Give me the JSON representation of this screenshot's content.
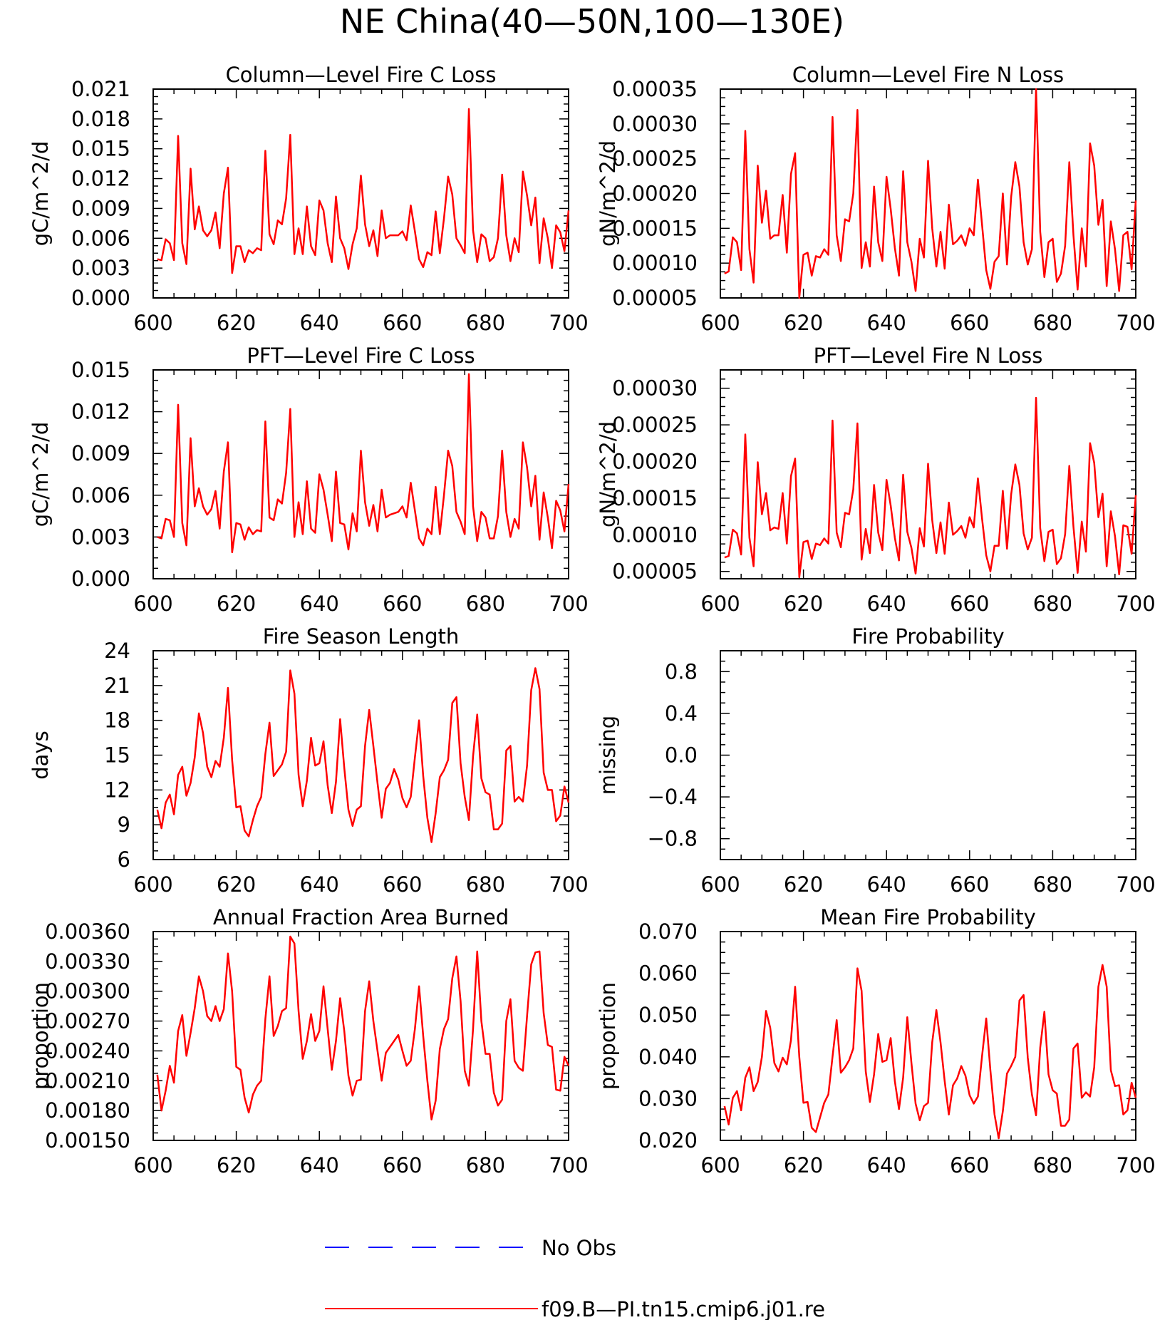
{
  "title": "NE China(40—50N,100—130E)",
  "legend": [
    {
      "label": "No Obs",
      "color": "#0000ff",
      "dash": true
    },
    {
      "label": "f09.B—PI.tn15.cmip6.j01.re",
      "color": "#ff0000",
      "dash": false
    }
  ],
  "chart_data": [
    {
      "type": "line",
      "title": "Column—Level Fire C Loss",
      "ylabel": "gC/m^2/d",
      "xlim": [
        600,
        700
      ],
      "xticks": [
        "600",
        "620",
        "640",
        "660",
        "680",
        "700"
      ],
      "ylim": [
        0,
        0.021
      ],
      "yticks": [
        "0.000",
        "0.003",
        "0.006",
        "0.009",
        "0.012",
        "0.015",
        "0.018",
        "0.021"
      ],
      "x_start": 601,
      "series": [
        {
          "name": "f09.B—PI.tn15.cmip6.j01.re",
          "color": "#ff0000",
          "values": [
            0.0039,
            0.0038,
            0.0059,
            0.0055,
            0.0038,
            0.0163,
            0.0055,
            0.0034,
            0.013,
            0.0069,
            0.0092,
            0.0068,
            0.0062,
            0.0068,
            0.0086,
            0.005,
            0.0105,
            0.0131,
            0.0025,
            0.0052,
            0.0052,
            0.0036,
            0.0048,
            0.0045,
            0.005,
            0.0048,
            0.0148,
            0.0064,
            0.0054,
            0.0078,
            0.0074,
            0.01,
            0.0164,
            0.0044,
            0.007,
            0.0044,
            0.0092,
            0.0052,
            0.0043,
            0.0098,
            0.0088,
            0.0055,
            0.0036,
            0.0102,
            0.006,
            0.005,
            0.0029,
            0.0054,
            0.007,
            0.0123,
            0.0074,
            0.0052,
            0.0068,
            0.0042,
            0.0088,
            0.006,
            0.0063,
            0.0063,
            0.0063,
            0.0067,
            0.0058,
            0.0093,
            0.0067,
            0.0039,
            0.0031,
            0.0046,
            0.0043,
            0.0087,
            0.0045,
            0.008,
            0.0122,
            0.0104,
            0.006,
            0.0053,
            0.0045,
            0.019,
            0.0068,
            0.0036,
            0.0064,
            0.006,
            0.0037,
            0.0041,
            0.006,
            0.0124,
            0.0063,
            0.0037,
            0.006,
            0.0046,
            0.0127,
            0.0103,
            0.0073,
            0.0101,
            0.0035,
            0.008,
            0.006,
            0.003,
            0.0073,
            0.0066,
            0.0047,
            0.0088
          ]
        }
      ]
    },
    {
      "type": "line",
      "title": "Column—Level Fire N Loss",
      "ylabel": "gN/m^2/d",
      "xlim": [
        600,
        700
      ],
      "xticks": [
        "600",
        "620",
        "640",
        "660",
        "680",
        "700"
      ],
      "ylim": [
        5e-05,
        0.00035
      ],
      "yticks": [
        "0.00005",
        "0.00010",
        "0.00015",
        "0.00020",
        "0.00025",
        "0.00030",
        "0.00035"
      ],
      "x_start": 601,
      "series": [
        {
          "name": "f09.B—PI.tn15.cmip6.j01.re",
          "color": "#ff0000",
          "values": [
            8.5e-05,
            8.8e-05,
            0.000137,
            0.00013,
            9e-05,
            0.00029,
            0.00012,
            7.2e-05,
            0.00024,
            0.000158,
            0.000204,
            0.000135,
            0.00014,
            0.00014,
            0.000198,
            0.000115,
            0.000228,
            0.000258,
            5e-05,
            0.000112,
            0.000115,
            8.2e-05,
            0.00011,
            0.000108,
            0.00012,
            0.000112,
            0.00031,
            0.00014,
            0.000103,
            0.000163,
            0.00016,
            0.0002,
            0.00032,
            9.3e-05,
            0.00013,
            9.5e-05,
            0.00021,
            0.00013,
            0.000103,
            0.000224,
            0.000178,
            0.000122,
            8.2e-05,
            0.000232,
            0.00013,
            0.000102,
            6e-05,
            0.000135,
            0.000108,
            0.000247,
            0.00015,
            9.5e-05,
            0.000145,
            9.2e-05,
            0.000184,
            0.000127,
            0.000132,
            0.00014,
            0.000125,
            0.00015,
            0.00014,
            0.00022,
            0.000155,
            9e-05,
            6.3e-05,
            0.000102,
            0.00011,
            0.0002,
            9.8e-05,
            0.000195,
            0.000245,
            0.00021,
            0.00013,
            9.8e-05,
            0.00012,
            0.00035,
            0.000145,
            8e-05,
            0.00013,
            0.000135,
            7.3e-05,
            8.5e-05,
            0.000125,
            0.000245,
            0.00014,
            6.2e-05,
            0.00015,
            9.5e-05,
            0.000272,
            0.00024,
            0.000155,
            0.000191,
            6.7e-05,
            0.00016,
            0.00012,
            6e-05,
            0.00014,
            0.000145,
            9.1e-05,
            0.00019
          ]
        }
      ]
    },
    {
      "type": "line",
      "title": "PFT—Level Fire C Loss",
      "ylabel": "gC/m^2/d",
      "xlim": [
        600,
        700
      ],
      "xticks": [
        "600",
        "620",
        "640",
        "660",
        "680",
        "700"
      ],
      "ylim": [
        0,
        0.015
      ],
      "yticks": [
        "0.000",
        "0.003",
        "0.006",
        "0.009",
        "0.012",
        "0.015"
      ],
      "x_start": 601,
      "series": [
        {
          "name": "f09.B—PI.tn15.cmip6.j01.re",
          "color": "#ff0000",
          "values": [
            0.003,
            0.0029,
            0.0043,
            0.0042,
            0.003,
            0.0125,
            0.004,
            0.0024,
            0.0101,
            0.0052,
            0.0065,
            0.0052,
            0.0046,
            0.005,
            0.0063,
            0.0036,
            0.0077,
            0.0098,
            0.0019,
            0.004,
            0.0039,
            0.0028,
            0.0037,
            0.0032,
            0.0035,
            0.0034,
            0.0113,
            0.0044,
            0.0042,
            0.0057,
            0.0054,
            0.0076,
            0.0122,
            0.003,
            0.0055,
            0.0032,
            0.007,
            0.0036,
            0.0033,
            0.0075,
            0.0064,
            0.0046,
            0.0027,
            0.0077,
            0.004,
            0.0039,
            0.0021,
            0.0047,
            0.0034,
            0.0092,
            0.0055,
            0.0038,
            0.0053,
            0.0034,
            0.0064,
            0.0044,
            0.0046,
            0.0047,
            0.0048,
            0.0052,
            0.0044,
            0.0069,
            0.0049,
            0.0029,
            0.0024,
            0.0036,
            0.0032,
            0.0066,
            0.0032,
            0.006,
            0.0092,
            0.0081,
            0.0048,
            0.0041,
            0.0032,
            0.0147,
            0.0052,
            0.0027,
            0.0048,
            0.0044,
            0.0029,
            0.0029,
            0.0045,
            0.0092,
            0.0048,
            0.003,
            0.0043,
            0.0036,
            0.0098,
            0.008,
            0.0052,
            0.0074,
            0.0028,
            0.0062,
            0.0044,
            0.0022,
            0.0056,
            0.0049,
            0.0034,
            0.0068
          ]
        }
      ]
    },
    {
      "type": "line",
      "title": "PFT—Level Fire N Loss",
      "ylabel": "gN/m^2/d",
      "xlim": [
        600,
        700
      ],
      "xticks": [
        "600",
        "620",
        "640",
        "660",
        "680",
        "700"
      ],
      "ylim": [
        4e-05,
        0.000325
      ],
      "yticks": [
        "0.00005",
        "0.00010",
        "0.00015",
        "0.00020",
        "0.00025",
        "0.00030"
      ],
      "x_start": 601,
      "series": [
        {
          "name": "f09.B—PI.tn15.cmip6.j01.re",
          "color": "#ff0000",
          "values": [
            6.9e-05,
            7.1e-05,
            0.000107,
            0.000102,
            7.3e-05,
            0.000237,
            9.6e-05,
            5.7e-05,
            0.000199,
            0.000128,
            0.000157,
            0.000106,
            0.00011,
            0.000108,
            0.000157,
            8.8e-05,
            0.00018,
            0.000204,
            4.2e-05,
            9e-05,
            9.2e-05,
            6.7e-05,
            8.8e-05,
            8.6e-05,
            9.5e-05,
            8.8e-05,
            0.000256,
            0.000103,
            8.3e-05,
            0.00013,
            0.000128,
            0.000162,
            0.000252,
            6.6e-05,
            0.000108,
            7.5e-05,
            0.000168,
            0.000103,
            7.9e-05,
            0.000175,
            0.00014,
            9.6e-05,
            6.5e-05,
            0.000182,
            0.000104,
            8.2e-05,
            4.7e-05,
            0.000109,
            8.4e-05,
            0.000197,
            0.00012,
            7.5e-05,
            0.000117,
            7.4e-05,
            0.000144,
            0.0001,
            0.000105,
            0.000112,
            9.6e-05,
            0.000124,
            0.00011,
            0.000177,
            0.000122,
            7.2e-05,
            5e-05,
            8.5e-05,
            8.5e-05,
            0.00016,
            8.1e-05,
            0.000155,
            0.000196,
            0.000168,
            0.000102,
            8e-05,
            9.6e-05,
            0.000287,
            0.000109,
            6.4e-05,
            0.000104,
            0.000107,
            6e-05,
            6.8e-05,
            0.000101,
            0.000194,
            0.000111,
            4.8e-05,
            0.000118,
            7.7e-05,
            0.000225,
            0.000198,
            0.000124,
            0.000156,
            5.7e-05,
            0.000132,
            9.8e-05,
            4.6e-05,
            0.000113,
            0.000111,
            7.4e-05,
            0.000154
          ]
        }
      ]
    },
    {
      "type": "line",
      "title": "Fire Season Length",
      "ylabel": "days",
      "xlim": [
        600,
        700
      ],
      "xticks": [
        "600",
        "620",
        "640",
        "660",
        "680",
        "700"
      ],
      "ylim": [
        6,
        24
      ],
      "yticks": [
        "6",
        "9",
        "12",
        "15",
        "18",
        "21",
        "24"
      ],
      "x_start": 601,
      "series": [
        {
          "name": "f09.B—PI.tn15.cmip6.j01.re",
          "color": "#ff0000",
          "values": [
            10.3,
            8.7,
            10.9,
            11.6,
            9.9,
            13.3,
            14.0,
            11.5,
            12.6,
            14.8,
            18.6,
            16.9,
            14.0,
            13.1,
            14.5,
            14.0,
            16.5,
            20.8,
            14.6,
            10.5,
            10.6,
            8.5,
            8.0,
            9.4,
            10.6,
            11.4,
            15.1,
            17.8,
            13.2,
            13.7,
            14.2,
            15.3,
            22.3,
            20.3,
            13.3,
            10.6,
            12.8,
            16.5,
            14.1,
            14.3,
            16.2,
            12.4,
            10.0,
            12.7,
            18.1,
            13.9,
            10.3,
            8.9,
            10.3,
            10.6,
            15.8,
            18.9,
            15.8,
            12.6,
            9.6,
            12.1,
            12.6,
            13.8,
            12.9,
            11.3,
            10.5,
            11.4,
            14.8,
            18.0,
            13.2,
            9.6,
            7.5,
            10.0,
            13.1,
            13.7,
            14.6,
            19.5,
            20.0,
            14.3,
            11.4,
            9.4,
            14.9,
            18.5,
            13.0,
            11.8,
            11.6,
            8.6,
            8.6,
            9.1,
            15.4,
            15.8,
            11.0,
            11.4,
            11.0,
            14.1,
            20.6,
            22.5,
            20.7,
            13.5,
            12.0,
            12.0,
            9.3,
            9.8,
            12.3,
            10.9
          ]
        }
      ]
    },
    {
      "type": "line",
      "title": "Fire Probability",
      "ylabel": "missing",
      "xlim": [
        600,
        700
      ],
      "xticks": [
        "600",
        "620",
        "640",
        "660",
        "680",
        "700"
      ],
      "ylim": [
        -1,
        1
      ],
      "yticks": [
        "−0.8",
        "−0.4",
        "0.0",
        "0.4",
        "0.8"
      ],
      "ytick_values": [
        -0.8,
        -0.4,
        0,
        0.4,
        0.8
      ],
      "x_start": 601,
      "series": []
    },
    {
      "type": "line",
      "title": "Annual Fraction Area Burned",
      "ylabel": "proportion",
      "xlim": [
        600,
        700
      ],
      "xticks": [
        "600",
        "620",
        "640",
        "660",
        "680",
        "700"
      ],
      "ylim": [
        0.0015,
        0.0036
      ],
      "yticks": [
        "0.00150",
        "0.00180",
        "0.00210",
        "0.00240",
        "0.00270",
        "0.00300",
        "0.00330",
        "0.00360"
      ],
      "x_start": 601,
      "series": [
        {
          "name": "f09.B—PI.tn15.cmip6.j01.re",
          "color": "#ff0000",
          "values": [
            0.00216,
            0.0018,
            0.002,
            0.00225,
            0.00208,
            0.0026,
            0.00276,
            0.00235,
            0.00258,
            0.00283,
            0.00315,
            0.003,
            0.00275,
            0.0027,
            0.00285,
            0.0027,
            0.00282,
            0.00338,
            0.003,
            0.00224,
            0.00221,
            0.00193,
            0.00178,
            0.00196,
            0.00205,
            0.0021,
            0.00272,
            0.00315,
            0.00255,
            0.00265,
            0.0028,
            0.00283,
            0.00355,
            0.00348,
            0.0028,
            0.00232,
            0.0025,
            0.00277,
            0.0025,
            0.0026,
            0.00305,
            0.00262,
            0.00221,
            0.0025,
            0.00293,
            0.0026,
            0.00215,
            0.00195,
            0.0021,
            0.00211,
            0.0028,
            0.0031,
            0.0027,
            0.0024,
            0.0021,
            0.00238,
            0.00244,
            0.0025,
            0.00256,
            0.0024,
            0.00225,
            0.0023,
            0.00262,
            0.00305,
            0.00255,
            0.0021,
            0.00171,
            0.0019,
            0.00242,
            0.00262,
            0.00272,
            0.00313,
            0.00335,
            0.0029,
            0.0022,
            0.00205,
            0.00262,
            0.0034,
            0.0027,
            0.00237,
            0.00237,
            0.00198,
            0.00185,
            0.00191,
            0.0027,
            0.00292,
            0.0023,
            0.00223,
            0.0022,
            0.00275,
            0.00327,
            0.00339,
            0.0034,
            0.00278,
            0.00246,
            0.00244,
            0.00201,
            0.002,
            0.00234,
            0.00225
          ]
        }
      ]
    },
    {
      "type": "line",
      "title": "Mean Fire Probability",
      "ylabel": "proportion",
      "xlim": [
        600,
        700
      ],
      "xticks": [
        "600",
        "620",
        "640",
        "660",
        "680",
        "700"
      ],
      "ylim": [
        0.02,
        0.07
      ],
      "yticks": [
        "0.020",
        "0.030",
        "0.040",
        "0.050",
        "0.060",
        "0.070"
      ],
      "x_start": 601,
      "series": [
        {
          "name": "f09.B—PI.tn15.cmip6.j01.re",
          "color": "#ff0000",
          "values": [
            0.0282,
            0.0238,
            0.0302,
            0.0318,
            0.0272,
            0.035,
            0.0375,
            0.0318,
            0.034,
            0.04,
            0.051,
            0.047,
            0.0385,
            0.0365,
            0.0398,
            0.0382,
            0.044,
            0.0568,
            0.04,
            0.029,
            0.0292,
            0.023,
            0.022,
            0.0255,
            0.029,
            0.031,
            0.04,
            0.0488,
            0.0362,
            0.0375,
            0.0392,
            0.042,
            0.0612,
            0.0558,
            0.0365,
            0.0292,
            0.0358,
            0.0455,
            0.0388,
            0.0392,
            0.0445,
            0.0342,
            0.0275,
            0.035,
            0.0495,
            0.0385,
            0.0288,
            0.0248,
            0.0282,
            0.029,
            0.0435,
            0.0512,
            0.0435,
            0.0342,
            0.0262,
            0.0332,
            0.0348,
            0.0378,
            0.0355,
            0.0308,
            0.0288,
            0.0305,
            0.0402,
            0.0492,
            0.0368,
            0.0262,
            0.0205,
            0.027,
            0.036,
            0.0378,
            0.04,
            0.0535,
            0.0548,
            0.0398,
            0.031,
            0.026,
            0.0422,
            0.0508,
            0.0358,
            0.032,
            0.0312,
            0.0235,
            0.0235,
            0.025,
            0.042,
            0.0432,
            0.0302,
            0.0315,
            0.0305,
            0.0375,
            0.0568,
            0.062,
            0.0568,
            0.0368,
            0.033,
            0.0332,
            0.0262,
            0.0272,
            0.0338,
            0.0302
          ]
        }
      ]
    }
  ]
}
